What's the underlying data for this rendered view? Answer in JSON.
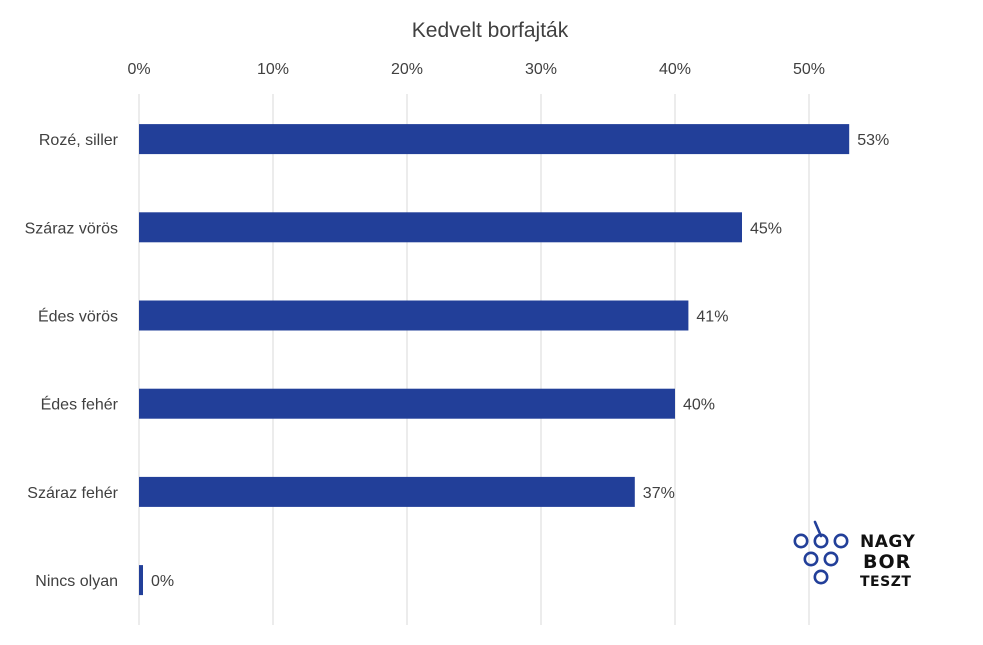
{
  "chart_data": {
    "type": "bar",
    "orientation": "horizontal",
    "title": "Kedvelt borfajták",
    "categories": [
      "Rozé, siller",
      "Száraz vörös",
      "Édes vörös",
      "Édes fehér",
      "Száraz fehér",
      "Nincs olyan"
    ],
    "values": [
      53,
      45,
      41,
      40,
      37,
      0
    ],
    "data_labels": [
      "53%",
      "45%",
      "41%",
      "40%",
      "37%",
      "0%"
    ],
    "x_ticks": [
      "0%",
      "10%",
      "20%",
      "30%",
      "40%",
      "50%"
    ],
    "xlim": [
      0,
      60
    ],
    "x_axis_position": "top",
    "grid": true,
    "bar_color": "#223f99"
  },
  "logo": {
    "lines": [
      "NAGY",
      "BOR",
      "TESZT"
    ],
    "color": "#223f99"
  }
}
